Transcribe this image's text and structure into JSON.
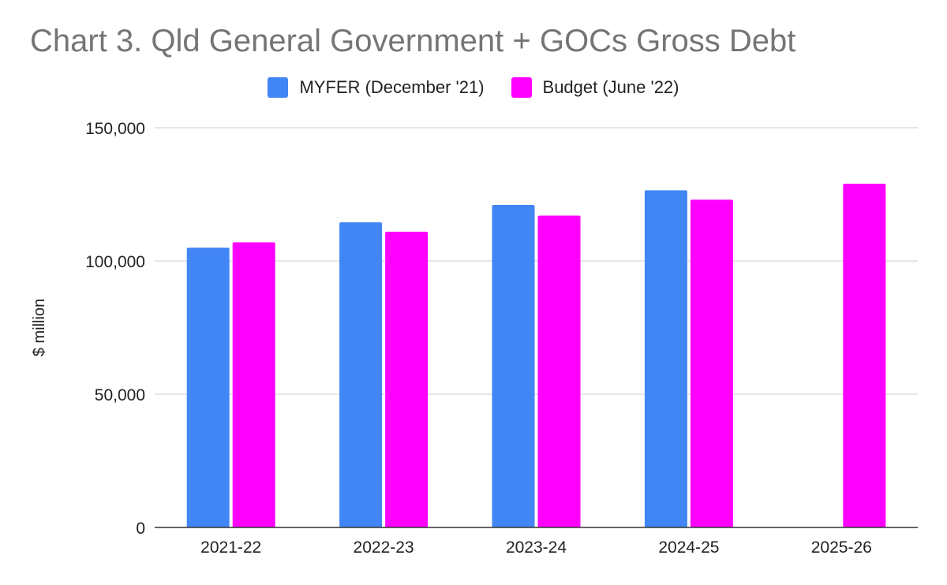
{
  "chart_data": {
    "type": "bar",
    "title": "Chart 3. Qld General Government + GOCs Gross Debt",
    "xlabel": "",
    "ylabel": "$ million",
    "categories": [
      "2021-22",
      "2022-23",
      "2023-24",
      "2024-25",
      "2025-26"
    ],
    "series": [
      {
        "name": "MYFER (December '21)",
        "color": "#4285f4",
        "values": [
          105000,
          114500,
          121000,
          126500,
          null
        ]
      },
      {
        "name": "Budget (June '22)",
        "color": "#ff00ff",
        "values": [
          107000,
          111000,
          117000,
          123000,
          129000
        ]
      }
    ],
    "ylim": [
      0,
      150000
    ],
    "yticks": [
      0,
      50000,
      100000,
      150000
    ],
    "ytick_labels": [
      "0",
      "50,000",
      "100,000",
      "150,000"
    ],
    "grid": true,
    "legend_position": "top-center"
  }
}
